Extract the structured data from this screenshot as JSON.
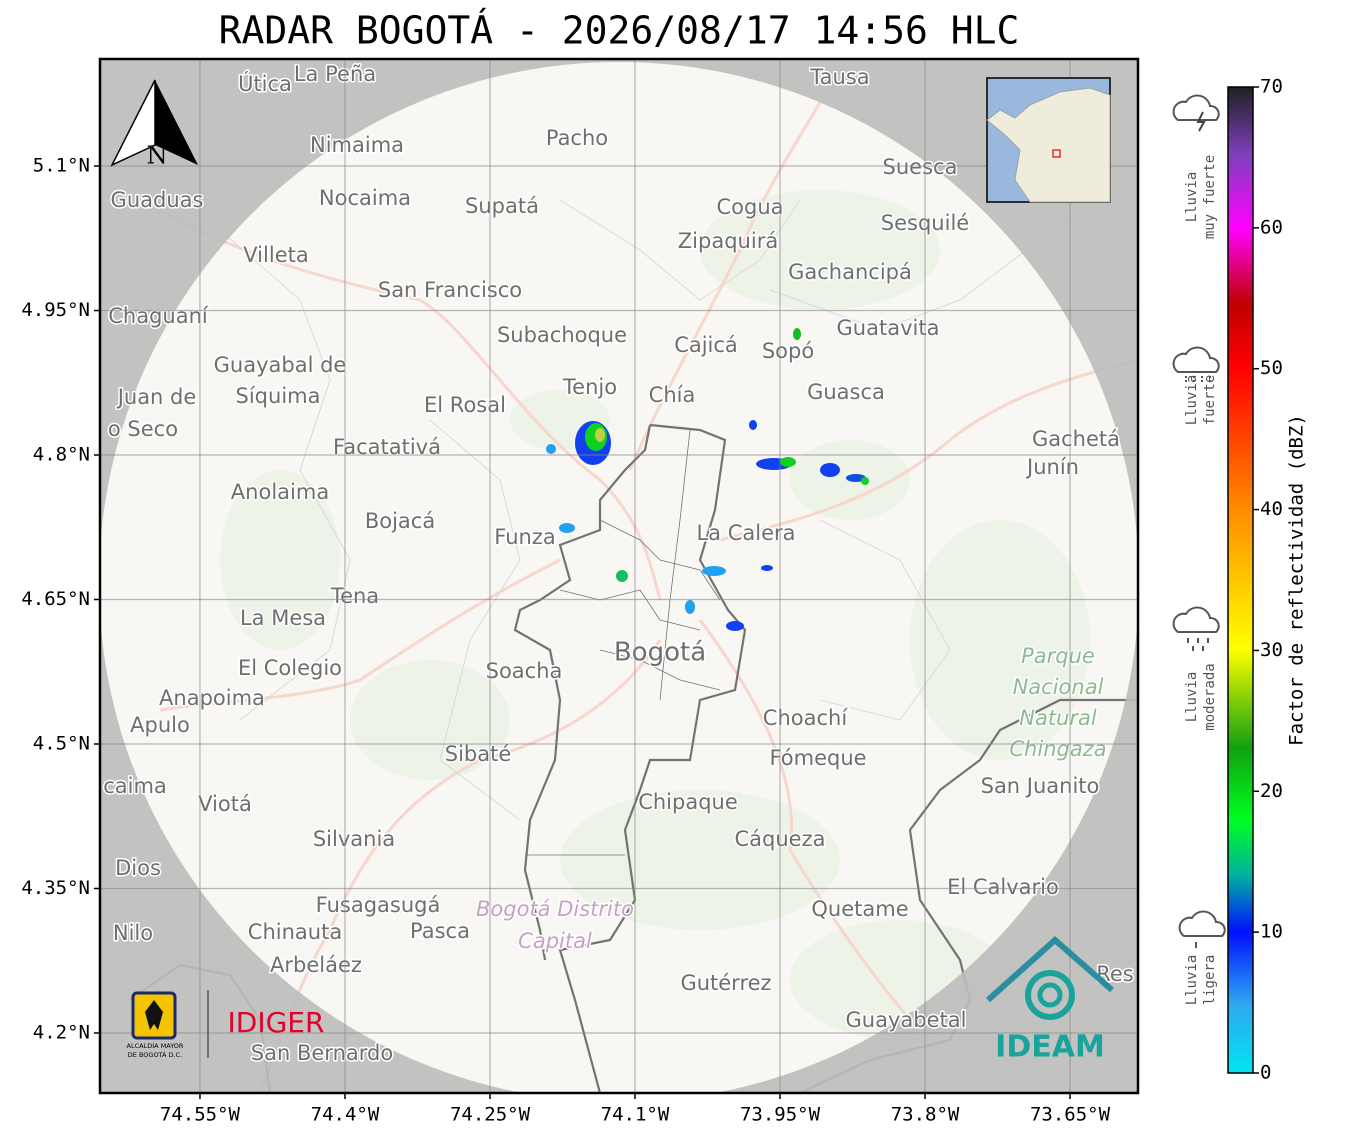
{
  "title": "RADAR BOGOTÁ - 2026/08/17 14:56 HLC",
  "map": {
    "xlim": [
      -74.6534,
      -73.5797
    ],
    "ylim": [
      4.1377,
      5.2111
    ],
    "grid": true,
    "xticks": [
      {
        "value": -74.55,
        "label": "74.55°W"
      },
      {
        "value": -74.4,
        "label": "74.4°W"
      },
      {
        "value": -74.25,
        "label": "74.25°W"
      },
      {
        "value": -74.1,
        "label": "74.1°W"
      },
      {
        "value": -73.95,
        "label": "73.95°W"
      },
      {
        "value": -73.8,
        "label": "73.8°W"
      },
      {
        "value": -73.65,
        "label": "73.65°W"
      }
    ],
    "yticks": [
      {
        "value": 5.1,
        "label": "5.1°N"
      },
      {
        "value": 4.95,
        "label": "4.95°N"
      },
      {
        "value": 4.8,
        "label": "4.8°N"
      },
      {
        "value": 4.65,
        "label": "4.65°N"
      },
      {
        "value": 4.5,
        "label": "4.5°N"
      },
      {
        "value": 4.35,
        "label": "4.35°N"
      },
      {
        "value": 4.2,
        "label": "4.2°N"
      }
    ],
    "north_label": "N",
    "places": [
      "Útica",
      "La Peña",
      "Tausa",
      "Pacho",
      "Nimaima",
      "Guaduas",
      "Nocaima",
      "Supatá",
      "Cogua",
      "Suesca",
      "Sesquilé",
      "Zipaquirá",
      "Villeta",
      "Gachancipá",
      "San Francisco",
      "Chaguaní",
      "Guatavita",
      "Subachoque",
      "Cajicá",
      "Sopó",
      "Guayabal de",
      "Síquima",
      "Juan de",
      "o Seco",
      "Tenjo",
      "Chía",
      "Guasca",
      "El Rosal",
      "Facatativá",
      "Gachetá",
      "Junín",
      "Anolaima",
      "Bojacá",
      "Funza",
      "La Calera",
      "Tena",
      "La Mesa",
      "Bogotá",
      "Soacha",
      "El Colegio",
      "Anapoima",
      "Apulo",
      "Choachí",
      "Sibaté",
      "Fómeque",
      "San Juanito",
      "caima",
      "Viotá",
      "Chipaque",
      "Silvania",
      "Cáqueza",
      "Dios",
      "El Calvario",
      "Fusagasugá",
      "Quetame",
      "Nilo",
      "Chinauta",
      "Pasca",
      "Arbeláez",
      "Gutérrez",
      "Res",
      "Guayabetal",
      "San Bernardo"
    ],
    "park_label": [
      "Parque",
      "Nacional",
      "Natural",
      "Chingaza"
    ],
    "district_label": [
      "Bogotá Distrito",
      "Capital"
    ]
  },
  "colorbar": {
    "label": "Factor de reflectividad (dBZ)",
    "lim": [
      0,
      70
    ],
    "ticks": [
      0,
      10,
      20,
      30,
      40,
      50,
      60,
      70
    ]
  },
  "rain_labels": [
    [
      "Lluvia",
      "muy fuerte"
    ],
    [
      "Lluvia",
      "fuerte"
    ],
    [
      "Lluvia",
      "moderada"
    ],
    [
      "Lluvia",
      "ligera"
    ]
  ],
  "logos": {
    "idiger": "IDIGER",
    "ideam": "IDEAM",
    "alcaldia": [
      "ALCALDÍA MAYOR",
      "DE BOGOTÁ D.C."
    ]
  }
}
